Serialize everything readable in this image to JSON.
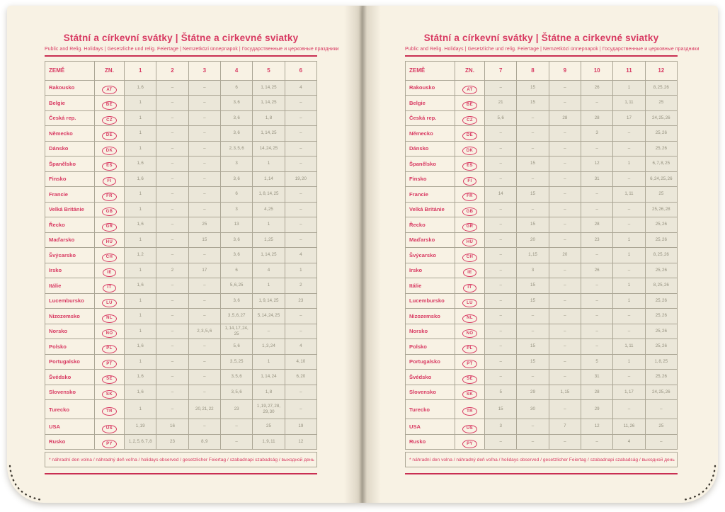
{
  "colors": {
    "accent": "#d83a62",
    "paper": "#f8f2e4",
    "month_cell": "#ebe7d9",
    "value_text": "#94907e",
    "border": "#aba695",
    "rule": "#c92f52",
    "stitch": "#3f3a31"
  },
  "title": "Státní a církevní svátky | Štátne a cirkevné sviatky",
  "subtitle": "Public and Relig. Holidays | Gesetzliche und relig. Feiertage | Nemzetközi ünnepnapok | Государственные и церковные праздники",
  "footnote": "* náhradní den volna / náhradný deň voľna / holidays observed / gesetzlicher Feiertag / szabadnapi szabadság / выходной день",
  "columns": {
    "country": "ZEMĚ",
    "code": "ZN."
  },
  "icons": {
    "corner_stitching": "stitch-dots"
  },
  "pages": [
    {
      "months": [
        "1",
        "2",
        "3",
        "4",
        "5",
        "6"
      ],
      "rows": [
        {
          "country": "Rakousko",
          "code": "AT",
          "cells": [
            "1, 6",
            "–",
            "–",
            "6",
            "1, 14, 25",
            "4"
          ]
        },
        {
          "country": "Belgie",
          "code": "BE",
          "cells": [
            "1",
            "–",
            "–",
            "3, 6",
            "1, 14, 25",
            "–"
          ]
        },
        {
          "country": "Česká rep.",
          "code": "CZ",
          "cells": [
            "1",
            "–",
            "–",
            "3, 6",
            "1, 8",
            "–"
          ]
        },
        {
          "country": "Německo",
          "code": "DE",
          "cells": [
            "1",
            "–",
            "–",
            "3, 6",
            "1, 14, 25",
            "–"
          ]
        },
        {
          "country": "Dánsko",
          "code": "DK",
          "cells": [
            "1",
            "–",
            "–",
            "2, 3, 5, 6",
            "14, 24, 25",
            "–"
          ]
        },
        {
          "country": "Španělsko",
          "code": "ES",
          "cells": [
            "1, 6",
            "–",
            "–",
            "3",
            "1",
            "–"
          ]
        },
        {
          "country": "Finsko",
          "code": "FI",
          "cells": [
            "1, 6",
            "–",
            "–",
            "3, 6",
            "1, 14",
            "19, 20"
          ]
        },
        {
          "country": "Francie",
          "code": "FR",
          "cells": [
            "1",
            "–",
            "–",
            "6",
            "1, 8, 14, 25",
            "–"
          ]
        },
        {
          "country": "Velká Británie",
          "code": "GB",
          "cells": [
            "1",
            "–",
            "–",
            "3",
            "4, 25",
            "–"
          ]
        },
        {
          "country": "Řecko",
          "code": "GR",
          "cells": [
            "1, 6",
            "–",
            "25",
            "13",
            "1",
            "–"
          ]
        },
        {
          "country": "Maďarsko",
          "code": "HU",
          "cells": [
            "1",
            "–",
            "15",
            "3, 6",
            "1, 25",
            "–"
          ]
        },
        {
          "country": "Švýcarsko",
          "code": "CH",
          "cells": [
            "1, 2",
            "–",
            "–",
            "3, 6",
            "1, 14, 25",
            "4"
          ]
        },
        {
          "country": "Irsko",
          "code": "IE",
          "cells": [
            "1",
            "2",
            "17",
            "6",
            "4",
            "1"
          ]
        },
        {
          "country": "Itálie",
          "code": "IT",
          "cells": [
            "1, 6",
            "–",
            "–",
            "5, 6, 25",
            "1",
            "2"
          ]
        },
        {
          "country": "Lucembursko",
          "code": "LU",
          "cells": [
            "1",
            "–",
            "–",
            "3, 6",
            "1, 9, 14, 25",
            "23"
          ]
        },
        {
          "country": "Nizozemsko",
          "code": "NL",
          "cells": [
            "1",
            "–",
            "–",
            "3, 5, 6, 27",
            "5, 14, 24, 25",
            "–"
          ]
        },
        {
          "country": "Norsko",
          "code": "NO",
          "cells": [
            "1",
            "–",
            "2, 3, 5, 6",
            "1, 14, 17, 24, 25",
            "–",
            "–"
          ]
        },
        {
          "country": "Polsko",
          "code": "PL",
          "cells": [
            "1, 6",
            "–",
            "–",
            "5, 6",
            "1, 3, 24",
            "4"
          ]
        },
        {
          "country": "Portugalsko",
          "code": "PT",
          "cells": [
            "1",
            "–",
            "–",
            "3, 5, 25",
            "1",
            "4, 10"
          ]
        },
        {
          "country": "Švédsko",
          "code": "SE",
          "cells": [
            "1, 6",
            "–",
            "–",
            "3, 5, 6",
            "1, 14, 24",
            "6, 20"
          ]
        },
        {
          "country": "Slovensko",
          "code": "SK",
          "cells": [
            "1, 6",
            "–",
            "–",
            "3, 5, 6",
            "1, 8",
            "–"
          ]
        },
        {
          "country": "Turecko",
          "code": "TR",
          "tall": true,
          "cells": [
            "1",
            "–",
            "20, 21, 22",
            "23",
            "1, 19, 27, 28, 29, 30",
            "–"
          ]
        },
        {
          "country": "USA",
          "code": "US",
          "cells": [
            "1, 19",
            "16",
            "–",
            "–",
            "25",
            "19"
          ]
        },
        {
          "country": "Rusko",
          "code": "PY",
          "cells": [
            "1, 2, 5, 6, 7, 8",
            "23",
            "8, 9",
            "–",
            "1, 9, 11",
            "12"
          ]
        }
      ]
    },
    {
      "months": [
        "7",
        "8",
        "9",
        "10",
        "11",
        "12"
      ],
      "rows": [
        {
          "country": "Rakousko",
          "code": "AT",
          "cells": [
            "–",
            "15",
            "–",
            "26",
            "1",
            "8, 25, 26"
          ]
        },
        {
          "country": "Belgie",
          "code": "BE",
          "cells": [
            "21",
            "15",
            "–",
            "–",
            "1, 11",
            "25"
          ]
        },
        {
          "country": "Česká rep.",
          "code": "CZ",
          "cells": [
            "5, 6",
            "–",
            "28",
            "28",
            "17",
            "24, 25, 26"
          ]
        },
        {
          "country": "Německo",
          "code": "DE",
          "cells": [
            "–",
            "–",
            "–",
            "3",
            "–",
            "25, 26"
          ]
        },
        {
          "country": "Dánsko",
          "code": "DK",
          "cells": [
            "–",
            "–",
            "–",
            "–",
            "–",
            "25, 26"
          ]
        },
        {
          "country": "Španělsko",
          "code": "ES",
          "cells": [
            "–",
            "15",
            "–",
            "12",
            "1",
            "6, 7, 8, 25"
          ]
        },
        {
          "country": "Finsko",
          "code": "FI",
          "cells": [
            "–",
            "–",
            "–",
            "31",
            "–",
            "6, 24, 25, 26"
          ]
        },
        {
          "country": "Francie",
          "code": "FR",
          "cells": [
            "14",
            "15",
            "–",
            "–",
            "1, 11",
            "25"
          ]
        },
        {
          "country": "Velká Británie",
          "code": "GB",
          "cells": [
            "–",
            "–",
            "–",
            "–",
            "–",
            "25, 26, 28"
          ]
        },
        {
          "country": "Řecko",
          "code": "GR",
          "cells": [
            "–",
            "15",
            "–",
            "28",
            "–",
            "25, 26"
          ]
        },
        {
          "country": "Maďarsko",
          "code": "HU",
          "cells": [
            "–",
            "20",
            "–",
            "23",
            "1",
            "25, 26"
          ]
        },
        {
          "country": "Švýcarsko",
          "code": "CH",
          "cells": [
            "–",
            "1, 15",
            "20",
            "–",
            "1",
            "8, 25, 26"
          ]
        },
        {
          "country": "Irsko",
          "code": "IE",
          "cells": [
            "–",
            "3",
            "–",
            "26",
            "–",
            "25, 26"
          ]
        },
        {
          "country": "Itálie",
          "code": "IT",
          "cells": [
            "–",
            "15",
            "–",
            "–",
            "1",
            "8, 25, 26"
          ]
        },
        {
          "country": "Lucembursko",
          "code": "LU",
          "cells": [
            "–",
            "15",
            "–",
            "–",
            "1",
            "25, 26"
          ]
        },
        {
          "country": "Nizozemsko",
          "code": "NL",
          "cells": [
            "–",
            "–",
            "–",
            "–",
            "–",
            "25, 26"
          ]
        },
        {
          "country": "Norsko",
          "code": "NO",
          "cells": [
            "–",
            "–",
            "–",
            "–",
            "–",
            "25, 26"
          ]
        },
        {
          "country": "Polsko",
          "code": "PL",
          "cells": [
            "–",
            "15",
            "–",
            "–",
            "1, 11",
            "25, 26"
          ]
        },
        {
          "country": "Portugalsko",
          "code": "PT",
          "cells": [
            "–",
            "15",
            "–",
            "5",
            "1",
            "1, 8, 25"
          ]
        },
        {
          "country": "Švédsko",
          "code": "SE",
          "cells": [
            "–",
            "–",
            "–",
            "31",
            "–",
            "25, 26"
          ]
        },
        {
          "country": "Slovensko",
          "code": "SK",
          "cells": [
            "5",
            "29",
            "1, 15",
            "28",
            "1, 17",
            "24, 25, 26"
          ]
        },
        {
          "country": "Turecko",
          "code": "TR",
          "tall": true,
          "cells": [
            "15",
            "30",
            "–",
            "29",
            "–",
            "–"
          ]
        },
        {
          "country": "USA",
          "code": "US",
          "cells": [
            "3",
            "–",
            "7",
            "12",
            "11, 26",
            "25"
          ]
        },
        {
          "country": "Rusko",
          "code": "PY",
          "cells": [
            "–",
            "–",
            "–",
            "–",
            "4",
            "–"
          ]
        }
      ]
    }
  ]
}
